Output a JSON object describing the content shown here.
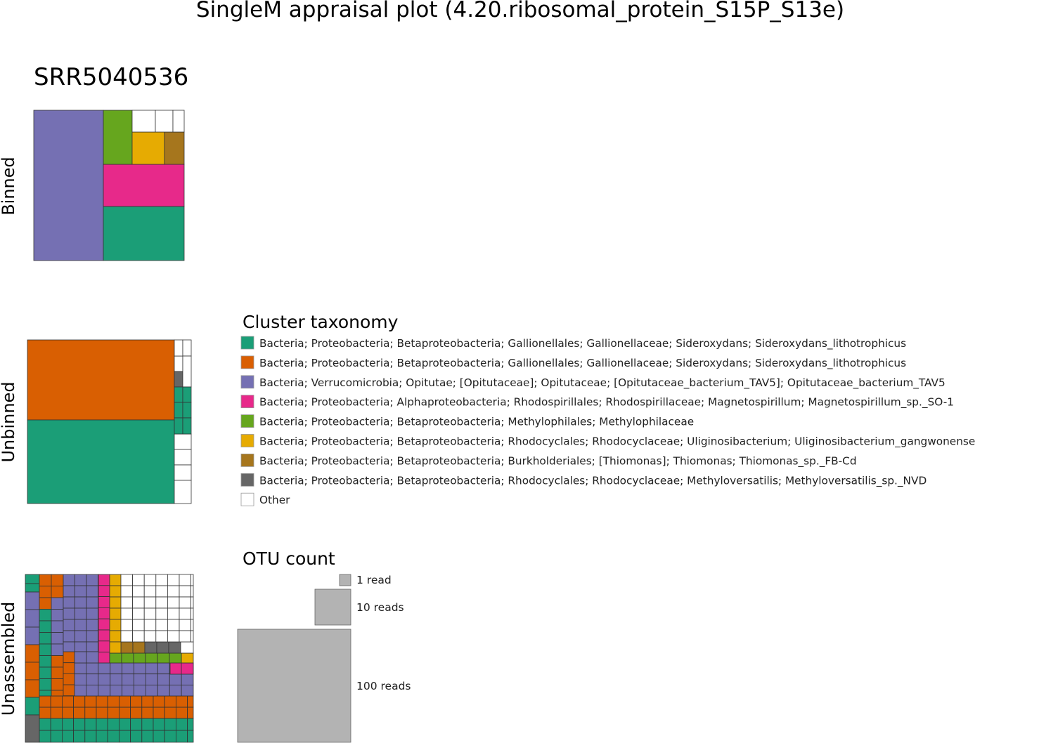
{
  "title": "SingleM appraisal plot (4.20.ribosomal_protein_S15P_S13e)",
  "sample": "SRR5040536",
  "panels": {
    "binned": "Binned",
    "unbinned": "Unbinned",
    "unassembled": "Unassembled"
  },
  "legend": {
    "title": "Cluster taxonomy",
    "items": [
      {
        "label": "Bacteria; Proteobacteria; Betaproteobacteria; Gallionellales; Gallionellaceae; Sideroxydans; Sideroxydans_lithotrophicus",
        "color": "#1b9e77"
      },
      {
        "label": "Bacteria; Proteobacteria; Betaproteobacteria; Gallionellales; Gallionellaceae; Sideroxydans; Sideroxydans_lithotrophicus",
        "color": "#d95f02"
      },
      {
        "label": "Bacteria; Verrucomicrobia; Opitutae; [Opitutaceae]; Opitutaceae; [Opitutaceae_bacterium_TAV5]; Opitutaceae_bacterium_TAV5",
        "color": "#7570b3"
      },
      {
        "label": "Bacteria; Proteobacteria; Alphaproteobacteria; Rhodospirillales; Rhodospirillaceae; Magnetospirillum; Magnetospirillum_sp._SO-1",
        "color": "#e7298a"
      },
      {
        "label": "Bacteria; Proteobacteria; Betaproteobacteria; Methylophilales; Methylophilaceae",
        "color": "#66a61e"
      },
      {
        "label": "Bacteria; Proteobacteria; Betaproteobacteria; Rhodocyclales; Rhodocyclaceae; Uliginosibacterium; Uliginosibacterium_gangwonense",
        "color": "#e6ab02"
      },
      {
        "label": "Bacteria; Proteobacteria; Betaproteobacteria; Burkholderiales; [Thiomonas]; Thiomonas; Thiomonas_sp._FB-Cd",
        "color": "#a6761d"
      },
      {
        "label": "Bacteria; Proteobacteria; Betaproteobacteria; Rhodocyclales; Rhodocyclaceae; Methyloversatilis; Methyloversatilis_sp._NVD",
        "color": "#666666"
      },
      {
        "label": "Other",
        "color": "#ffffff"
      }
    ]
  },
  "otu_legend": {
    "title": "OTU count",
    "items": [
      {
        "label": "1 read",
        "reads": 1
      },
      {
        "label": "10 reads",
        "reads": 10
      },
      {
        "label": "100 reads",
        "reads": 100
      }
    ],
    "color": "#b3b3b3"
  },
  "chart_data": {
    "type": "treemap",
    "panels": [
      {
        "name": "Binned",
        "otus": [
          {
            "taxon": 2,
            "reads": 100
          },
          {
            "taxon": 0,
            "reads": 24
          },
          {
            "taxon": 3,
            "reads": 19
          },
          {
            "taxon": 4,
            "reads": 8
          },
          {
            "taxon": 5,
            "reads": 7
          },
          {
            "taxon": 6,
            "reads": 4
          },
          {
            "taxon": 8,
            "reads": 2
          },
          {
            "taxon": 8,
            "reads": 1
          },
          {
            "taxon": 8,
            "reads": 1
          }
        ]
      },
      {
        "name": "Unbinned",
        "otus": [
          {
            "taxon": 1,
            "reads": 95
          },
          {
            "taxon": 0,
            "reads": 95
          },
          {
            "taxon": 8,
            "reads": 2
          },
          {
            "taxon": 8,
            "reads": 2
          },
          {
            "taxon": 8,
            "reads": 2
          },
          {
            "taxon": 8,
            "reads": 2
          },
          {
            "taxon": 8,
            "reads": 2
          },
          {
            "taxon": 8,
            "reads": 1
          },
          {
            "taxon": 8,
            "reads": 1
          },
          {
            "taxon": 7,
            "reads": 1
          },
          {
            "taxon": 8,
            "reads": 1
          },
          {
            "taxon": 0,
            "reads": 1
          },
          {
            "taxon": 0,
            "reads": 1
          },
          {
            "taxon": 0,
            "reads": 1
          },
          {
            "taxon": 0,
            "reads": 1
          },
          {
            "taxon": 0,
            "reads": 1
          },
          {
            "taxon": 0,
            "reads": 1
          }
        ]
      },
      {
        "name": "Unassembled",
        "composition": [
          {
            "taxon": 0,
            "reads": 80
          },
          {
            "taxon": 1,
            "reads": 70
          },
          {
            "taxon": 2,
            "reads": 48
          },
          {
            "taxon": 3,
            "reads": 9
          },
          {
            "taxon": 4,
            "reads": 7
          },
          {
            "taxon": 5,
            "reads": 8
          },
          {
            "taxon": 6,
            "reads": 2
          },
          {
            "taxon": 7,
            "reads": 5
          },
          {
            "taxon": 8,
            "reads": 40
          }
        ]
      }
    ]
  }
}
